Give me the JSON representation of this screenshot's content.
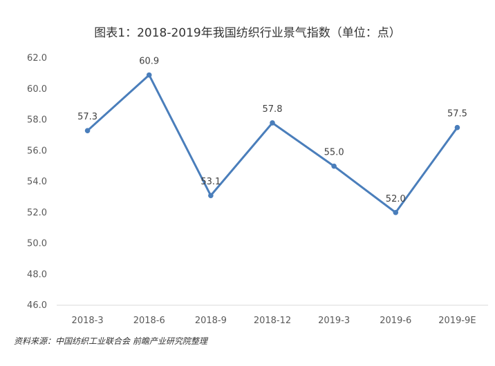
{
  "chart_data": {
    "type": "line",
    "title": "图表1：2018-2019年我国纺织行业景气指数（单位：点）",
    "categories": [
      "2018-3",
      "2018-6",
      "2018-9",
      "2018-12",
      "2019-3",
      "2019-6",
      "2019-9E"
    ],
    "series": [
      {
        "values": [
          57.3,
          60.9,
          53.1,
          57.8,
          55.0,
          52.0,
          57.5
        ],
        "color": "#4a7ebb"
      }
    ],
    "data_labels": [
      "57.3",
      "60.9",
      "53.1",
      "57.8",
      "55.0",
      "52.0",
      "57.5"
    ],
    "y_ticks": [
      46.0,
      48.0,
      50.0,
      52.0,
      54.0,
      56.0,
      58.0,
      60.0,
      62.0
    ],
    "y_tick_labels": [
      "46.0",
      "48.0",
      "50.0",
      "52.0",
      "54.0",
      "56.0",
      "58.0",
      "60.0",
      "62.0"
    ],
    "ylim": [
      46,
      62
    ],
    "xlabel": "",
    "ylabel": "",
    "grid": false,
    "legend": "none"
  },
  "source_note": "资料来源：中国纺织工业联合会 前瞻产业研究院整理"
}
